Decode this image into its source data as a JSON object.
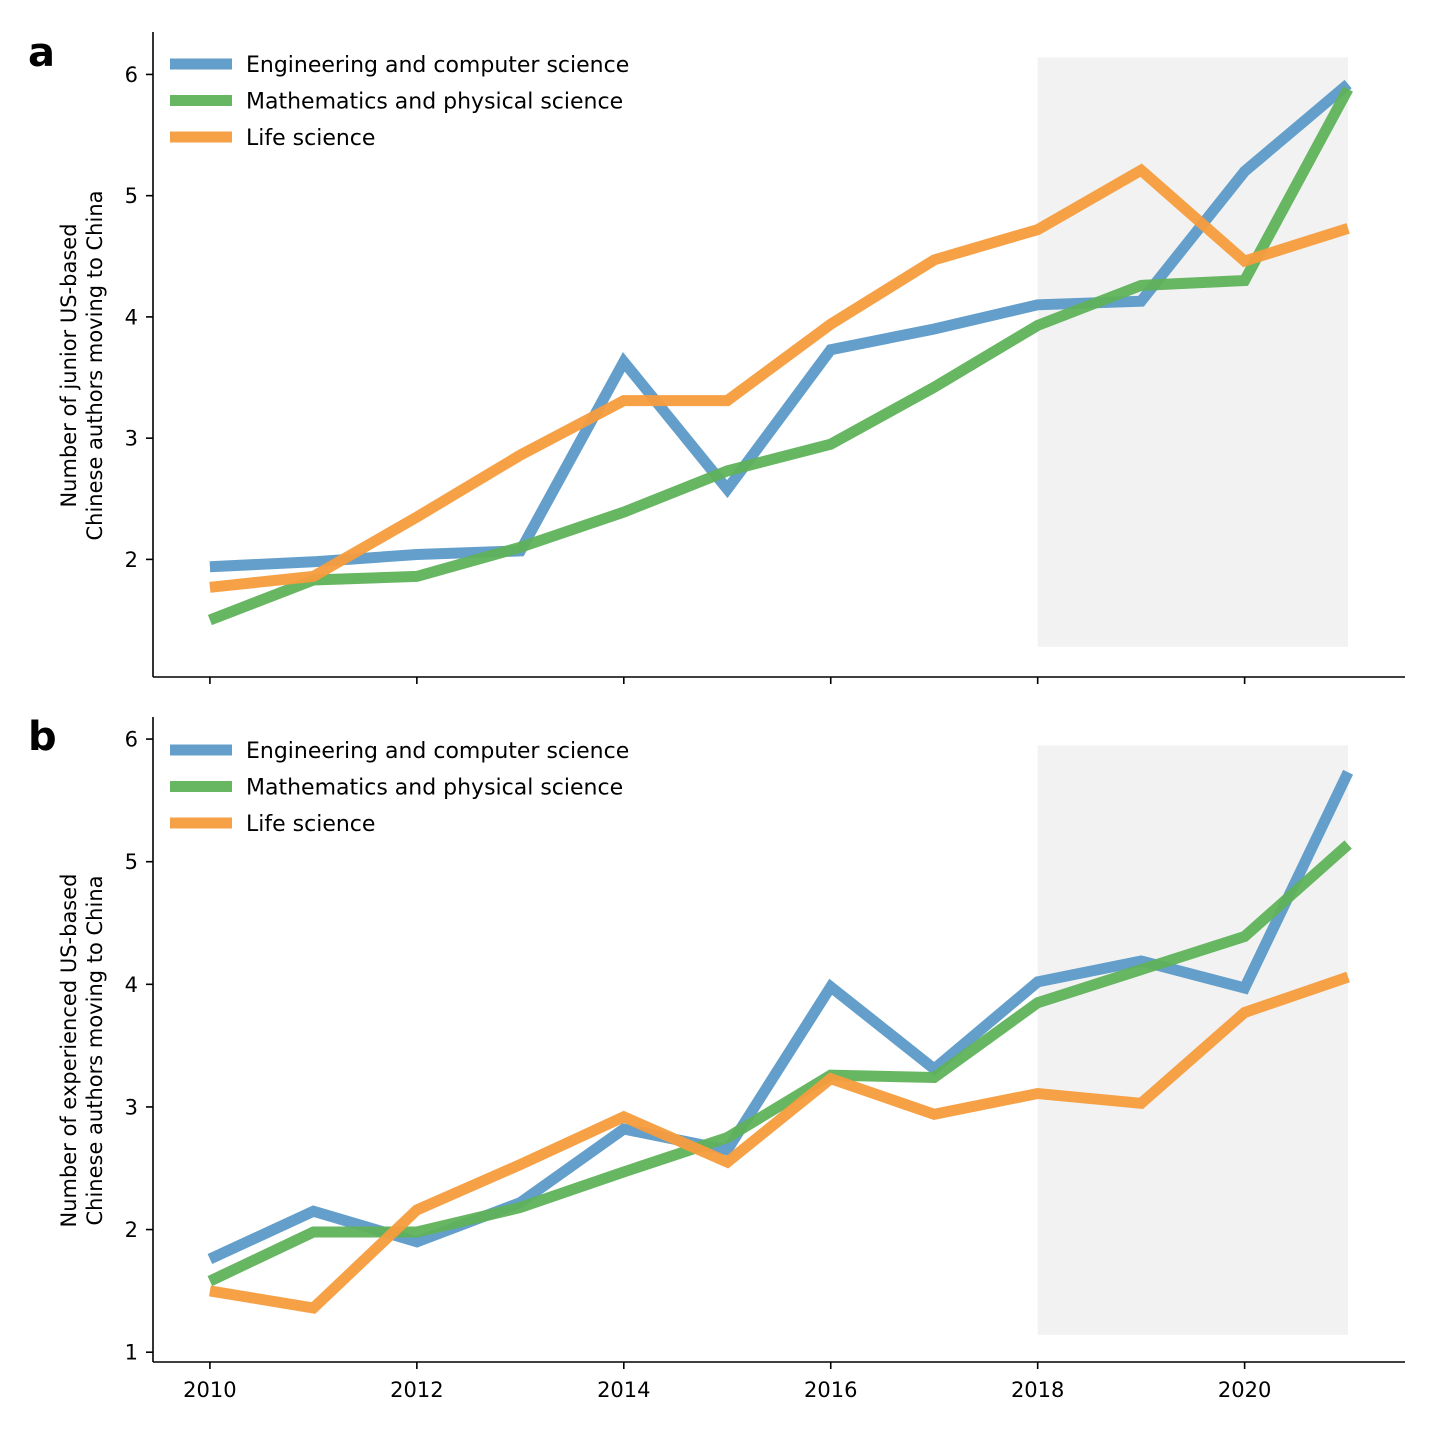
{
  "colors": {
    "Engineering and computer science": "#5b9ac7",
    "Mathematics and physical science": "#5fb25a",
    "Life science": "#f79c3d",
    "shade": "#f2f2f2"
  },
  "chart_data": [
    {
      "panel_label": "a",
      "type": "line",
      "title": "",
      "xlabel": "",
      "ylabel": [
        "Number of junior US-based",
        "Chinese authors moving to China"
      ],
      "x": [
        2010,
        2011,
        2012,
        2013,
        2014,
        2015,
        2016,
        2017,
        2018,
        2019,
        2020,
        2021
      ],
      "xlim": [
        2009.45,
        2021.55
      ],
      "ylim": [
        1.03,
        6.35
      ],
      "xticks": [
        2010,
        2012,
        2014,
        2016,
        2018,
        2020
      ],
      "yticks": [
        2,
        3,
        4,
        5,
        6
      ],
      "shaded_region": [
        2018,
        2021
      ],
      "legend_position": "top-left",
      "grid": false,
      "series": [
        {
          "name": "Engineering and computer science",
          "values": [
            1.94,
            1.98,
            2.04,
            2.07,
            3.63,
            2.58,
            3.73,
            3.9,
            4.1,
            4.13,
            5.2,
            5.92
          ]
        },
        {
          "name": "Mathematics and physical science",
          "values": [
            1.5,
            1.83,
            1.86,
            2.1,
            2.39,
            2.73,
            2.95,
            3.42,
            3.93,
            4.26,
            4.3,
            5.88
          ]
        },
        {
          "name": "Life science",
          "values": [
            1.77,
            1.86,
            2.35,
            2.86,
            3.31,
            3.31,
            3.94,
            4.47,
            4.72,
            5.21,
            4.46,
            4.73
          ]
        }
      ]
    },
    {
      "panel_label": "b",
      "type": "line",
      "title": "",
      "xlabel": "",
      "ylabel": [
        "Number of experienced US-based",
        "Chinese authors moving to China"
      ],
      "x": [
        2010,
        2011,
        2012,
        2013,
        2014,
        2015,
        2016,
        2017,
        2018,
        2019,
        2020,
        2021
      ],
      "xlim": [
        2009.45,
        2021.55
      ],
      "ylim": [
        0.92,
        6.18
      ],
      "xticks": [
        2010,
        2012,
        2014,
        2016,
        2018,
        2020
      ],
      "yticks": [
        1,
        2,
        3,
        4,
        5,
        6
      ],
      "shaded_region": [
        2018,
        2021
      ],
      "legend_position": "top-left",
      "grid": false,
      "series": [
        {
          "name": "Engineering and computer science",
          "values": [
            1.76,
            2.15,
            1.9,
            2.22,
            2.82,
            2.65,
            3.98,
            3.31,
            4.02,
            4.19,
            3.97,
            5.73
          ]
        },
        {
          "name": "Mathematics and physical science",
          "values": [
            1.58,
            1.98,
            1.98,
            2.18,
            2.47,
            2.75,
            3.26,
            3.24,
            3.85,
            4.12,
            4.39,
            5.14
          ]
        },
        {
          "name": "Life science",
          "values": [
            1.5,
            1.36,
            2.16,
            2.53,
            2.92,
            2.55,
            3.23,
            2.94,
            3.11,
            3.03,
            3.77,
            4.06
          ]
        }
      ]
    }
  ]
}
